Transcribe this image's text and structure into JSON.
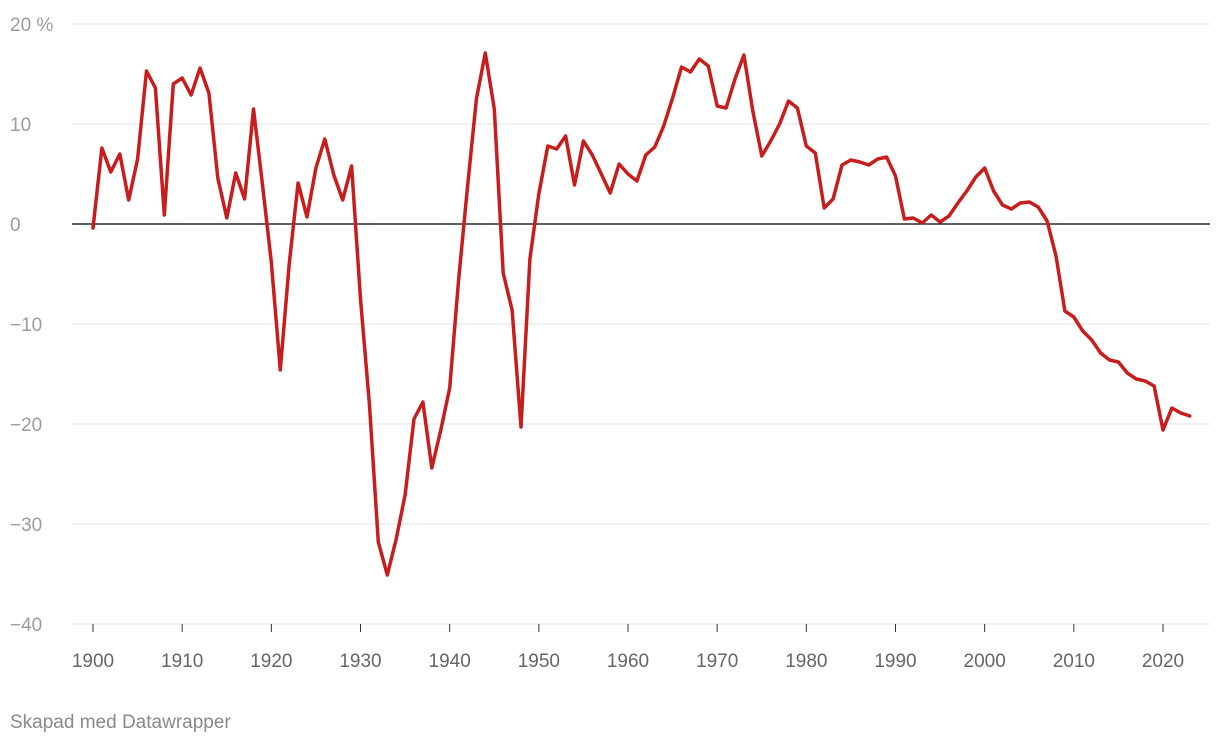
{
  "colors": {
    "line": "#c71e1d",
    "grid": "#e1e1e1",
    "zero": "#000000",
    "ytick": "#9b9b9b",
    "xtick": "#666666"
  },
  "footer": {
    "credit": "Skapad med Datawrapper"
  },
  "chart_data": {
    "type": "line",
    "xlim": [
      1900,
      2023
    ],
    "ylim": [
      -40,
      20
    ],
    "grid": true,
    "y_ticks": [
      20,
      10,
      0,
      -10,
      -20,
      -30,
      -40
    ],
    "y_tick_labels": [
      "20 %",
      "10",
      "0",
      "−10",
      "−20",
      "−30",
      "−40"
    ],
    "x_ticks": [
      1900,
      1910,
      1920,
      1930,
      1940,
      1950,
      1960,
      1970,
      1980,
      1990,
      2000,
      2010,
      2020
    ],
    "x_tick_labels": [
      "1900",
      "1910",
      "1920",
      "1930",
      "1940",
      "1950",
      "1960",
      "1970",
      "1980",
      "1990",
      "2000",
      "2010",
      "2020"
    ],
    "series": [
      {
        "x": [
          1900,
          1901,
          1902,
          1903,
          1904,
          1905,
          1906,
          1907,
          1908,
          1909,
          1910,
          1911,
          1912,
          1913,
          1914,
          1915,
          1916,
          1917,
          1918,
          1919,
          1920,
          1921,
          1922,
          1923,
          1924,
          1925,
          1926,
          1927,
          1928,
          1929,
          1930,
          1931,
          1932,
          1933,
          1934,
          1935,
          1936,
          1937,
          1938,
          1939,
          1940,
          1941,
          1942,
          1943,
          1944,
          1945,
          1946,
          1947,
          1948,
          1949,
          1950,
          1951,
          1952,
          1953,
          1954,
          1955,
          1956,
          1957,
          1958,
          1959,
          1960,
          1961,
          1962,
          1963,
          1964,
          1965,
          1966,
          1967,
          1968,
          1969,
          1970,
          1971,
          1972,
          1973,
          1974,
          1975,
          1976,
          1977,
          1978,
          1979,
          1980,
          1981,
          1982,
          1983,
          1984,
          1985,
          1986,
          1987,
          1988,
          1989,
          1990,
          1991,
          1992,
          1993,
          1994,
          1995,
          1996,
          1997,
          1998,
          1999,
          2000,
          2001,
          2002,
          2003,
          2004,
          2005,
          2006,
          2007,
          2008,
          2009,
          2010,
          2011,
          2012,
          2013,
          2014,
          2015,
          2016,
          2017,
          2018,
          2019,
          2020,
          2021,
          2022,
          2023
        ],
        "values": [
          -0.4,
          7.6,
          5.2,
          7.0,
          2.4,
          6.5,
          15.3,
          13.6,
          0.9,
          14.0,
          14.6,
          12.9,
          15.6,
          13.1,
          4.6,
          0.6,
          5.1,
          2.5,
          11.5,
          4.0,
          -3.8,
          -14.6,
          -4.0,
          4.1,
          0.7,
          5.6,
          8.5,
          4.9,
          2.4,
          5.8,
          -7.5,
          -18.0,
          -31.8,
          -35.1,
          -31.5,
          -27.1,
          -19.5,
          -17.8,
          -24.4,
          -20.6,
          -16.4,
          -5.6,
          3.7,
          12.5,
          17.1,
          11.5,
          -4.9,
          -8.6,
          -20.3,
          -3.5,
          3.0,
          7.8,
          7.5,
          8.8,
          3.9,
          8.3,
          6.9,
          5.0,
          3.1,
          6.0,
          5.0,
          4.3,
          6.9,
          7.7,
          9.8,
          12.6,
          15.7,
          15.2,
          16.5,
          15.8,
          11.8,
          11.6,
          14.5,
          16.9,
          11.3,
          6.8,
          8.3,
          10.0,
          12.3,
          11.6,
          7.8,
          7.1,
          1.6,
          2.5,
          5.9,
          6.4,
          6.2,
          5.9,
          6.5,
          6.7,
          4.8,
          0.5,
          0.6,
          0.1,
          0.9,
          0.2,
          0.8,
          2.1,
          3.3,
          4.7,
          5.6,
          3.3,
          1.9,
          1.5,
          2.1,
          2.2,
          1.7,
          0.3,
          -3.2,
          -8.7,
          -9.3,
          -10.7,
          -11.6,
          -12.9,
          -13.6,
          -13.8,
          -14.9,
          -15.5,
          -15.7,
          -16.2,
          -20.6,
          -18.4,
          -18.9,
          -19.2
        ]
      }
    ]
  }
}
